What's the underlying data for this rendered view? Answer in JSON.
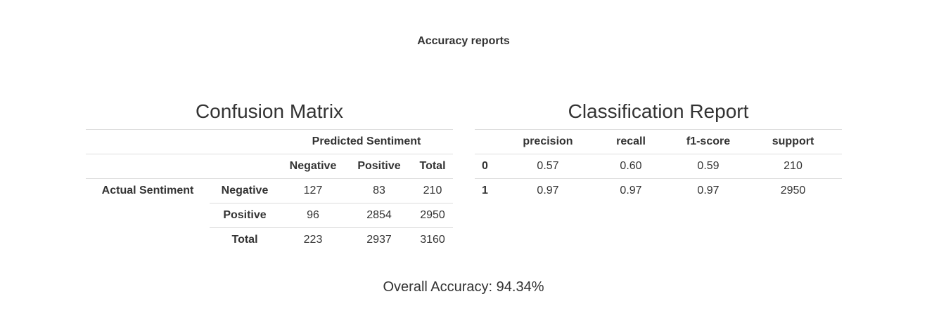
{
  "page_title": "Accuracy reports",
  "confusion_matrix": {
    "title": "Confusion Matrix",
    "predicted_header": "Predicted Sentiment",
    "actual_header": "Actual Sentiment",
    "columns": [
      "Negative",
      "Positive",
      "Total"
    ],
    "rows": [
      {
        "label": "Negative",
        "values": [
          "127",
          "83",
          "210"
        ]
      },
      {
        "label": "Positive",
        "values": [
          "96",
          "2854",
          "2950"
        ]
      },
      {
        "label": "Total",
        "values": [
          "223",
          "2937",
          "3160"
        ]
      }
    ]
  },
  "classification_report": {
    "title": "Classification Report",
    "columns": [
      "precision",
      "recall",
      "f1-score",
      "support"
    ],
    "rows": [
      {
        "label": "0",
        "values": [
          "0.57",
          "0.60",
          "0.59",
          "210"
        ]
      },
      {
        "label": "1",
        "values": [
          "0.97",
          "0.97",
          "0.97",
          "2950"
        ]
      }
    ]
  },
  "overall_accuracy": "Overall Accuracy: 94.34%"
}
